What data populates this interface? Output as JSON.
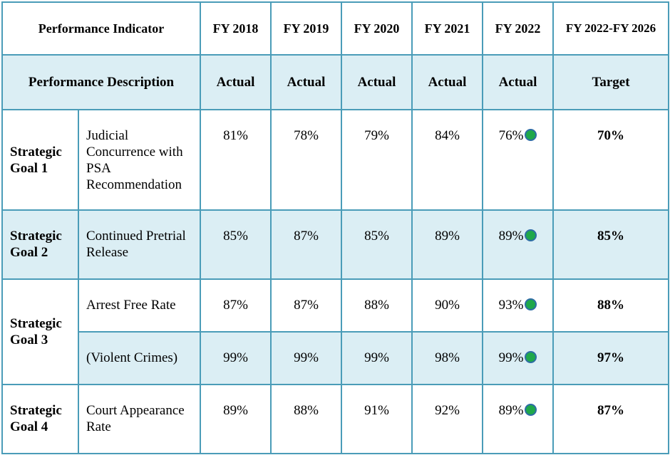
{
  "header": {
    "indicator": "Performance Indicator",
    "years": [
      "FY 2018",
      "FY 2019",
      "FY 2020",
      "FY 2021",
      "FY 2022"
    ],
    "range": "FY 2022-FY 2026"
  },
  "subheader": {
    "description": "Performance Description",
    "actual": "Actual",
    "target": "Target"
  },
  "rows": [
    {
      "goal": "Strategic Goal 1",
      "desc": "Judicial Concurrence with PSA Recommendation",
      "values": [
        "81%",
        "78%",
        "79%",
        "84%",
        "76%"
      ],
      "target": "70%",
      "status_color": "#1fa84a"
    },
    {
      "goal": "Strategic Goal 2",
      "desc": "Continued Pretrial Release",
      "values": [
        "85%",
        "87%",
        "85%",
        "89%",
        "89%"
      ],
      "target": "85%",
      "status_color": "#1fa84a"
    },
    {
      "goal": "Strategic Goal 3",
      "desc": "Arrest Free Rate",
      "values": [
        "87%",
        "87%",
        "88%",
        "90%",
        "93%"
      ],
      "target": "88%",
      "status_color": "#1fa84a"
    },
    {
      "goal": "",
      "desc": "(Violent Crimes)",
      "values": [
        "99%",
        "99%",
        "99%",
        "98%",
        "99%"
      ],
      "target": "97%",
      "status_color": "#1fa84a"
    },
    {
      "goal": "Strategic Goal 4",
      "desc": "Court Appearance Rate",
      "values": [
        "89%",
        "88%",
        "91%",
        "92%",
        "89%"
      ],
      "target": "87%",
      "status_color": "#1fa84a"
    }
  ]
}
